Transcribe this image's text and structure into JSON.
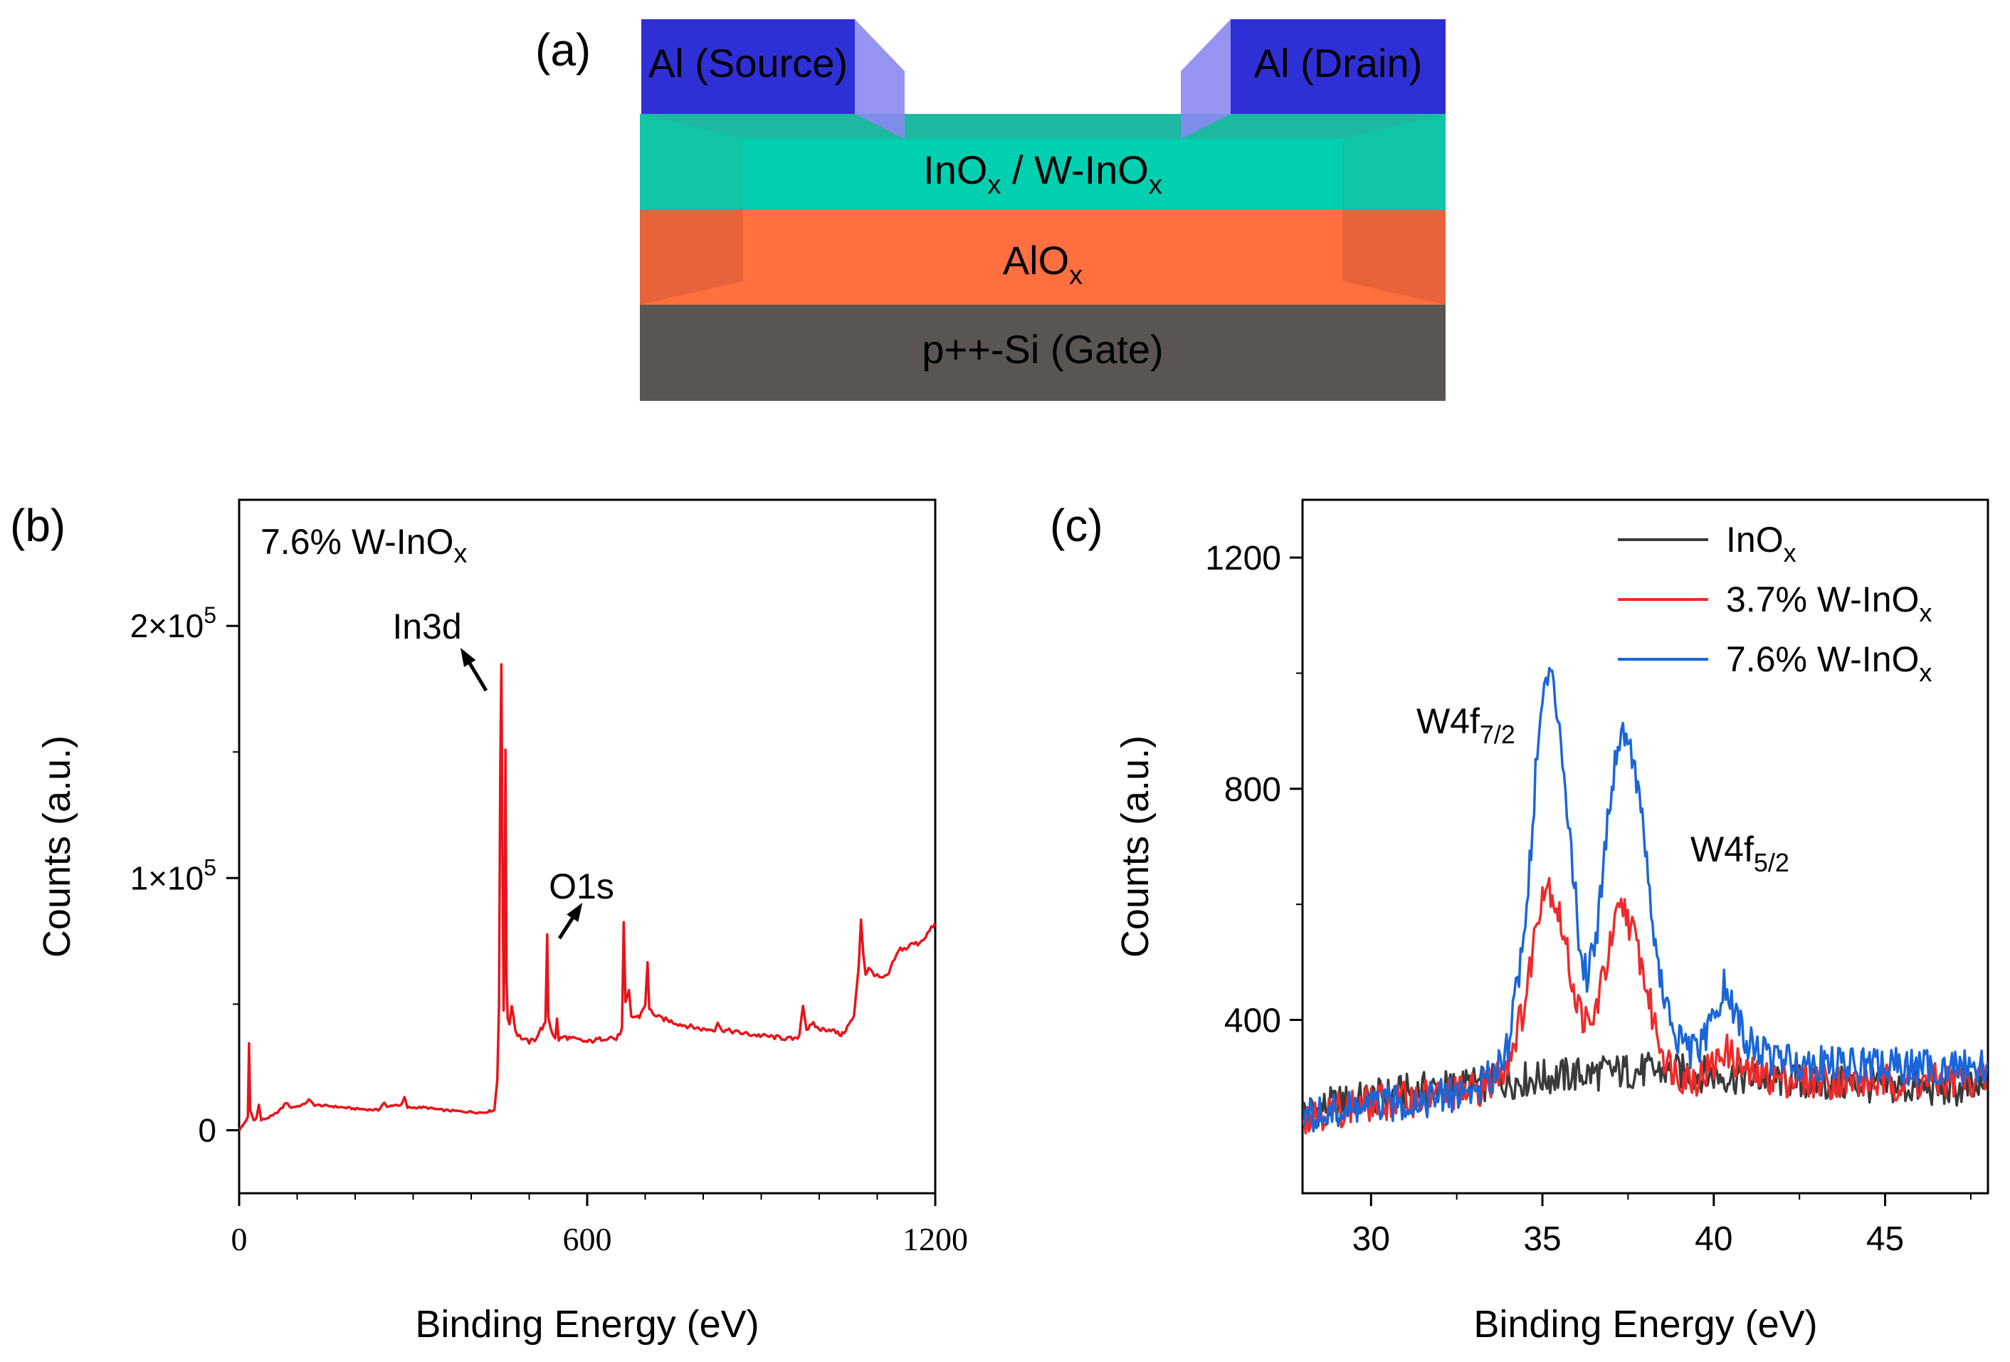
{
  "panel_a": {
    "label": "(a)",
    "source_label": "Al (Source)",
    "drain_label": "Al (Drain)",
    "channel_label": {
      "main": "InO",
      "sub": "x",
      "mid": " / W-InO",
      "sub2": "x"
    },
    "dielectric_label": {
      "main": "AlO",
      "sub": "x"
    },
    "gate_label": "p++-Si (Gate)",
    "colors": {
      "electrode": "#2f2fd6",
      "channel": "#00cfb0",
      "dielectric": "#ff6f40",
      "gate": "#5a5452"
    }
  },
  "chart_data": [
    {
      "panel_label": "(b)",
      "type": "line",
      "annotation": {
        "main": "7.6% W-InO",
        "sub": "x"
      },
      "xlabel": "Binding Energy (eV)",
      "ylabel": "Counts (a.u.)",
      "xlim": [
        0,
        1200
      ],
      "ylim": [
        -25000,
        250000
      ],
      "xticks": [
        0,
        600,
        1200
      ],
      "yticks": [
        {
          "value": 0,
          "base": "0",
          "exp": ""
        },
        {
          "value": 100000,
          "base": "1×10",
          "exp": "5"
        },
        {
          "value": 200000,
          "base": "2×10",
          "exp": "5"
        }
      ],
      "peak_labels": [
        {
          "text": "In3d",
          "x": 445,
          "y": 183000
        },
        {
          "text": "O1s",
          "x": 531,
          "y": 78000
        }
      ],
      "series": [
        {
          "name": "7.6% W-InO",
          "color": "#e8141a",
          "points": [
            [
              0,
              0
            ],
            [
              5,
              1500
            ],
            [
              12,
              4000
            ],
            [
              15,
              5000
            ],
            [
              17,
              34000
            ],
            [
              19,
              8000
            ],
            [
              25,
              4000
            ],
            [
              30,
              5000
            ],
            [
              34,
              10000
            ],
            [
              38,
              4000
            ],
            [
              45,
              4500
            ],
            [
              60,
              6000
            ],
            [
              75,
              9000
            ],
            [
              80,
              11000
            ],
            [
              90,
              9000
            ],
            [
              110,
              10000
            ],
            [
              120,
              12000
            ],
            [
              130,
              10000
            ],
            [
              160,
              9500
            ],
            [
              200,
              8500
            ],
            [
              240,
              8000
            ],
            [
              250,
              11000
            ],
            [
              255,
              9000
            ],
            [
              265,
              10000
            ],
            [
              280,
              10000
            ],
            [
              285,
              13000
            ],
            [
              290,
              9000
            ],
            [
              320,
              9000
            ],
            [
              350,
              8000
            ],
            [
              380,
              7500
            ],
            [
              420,
              7000
            ],
            [
              440,
              8000
            ],
            [
              445,
              20000
            ],
            [
              448,
              50000
            ],
            [
              450,
              140000
            ],
            [
              452,
              184000
            ],
            [
              454,
              110000
            ],
            [
              456,
              48000
            ],
            [
              458,
              80000
            ],
            [
              459,
              150000
            ],
            [
              461,
              60000
            ],
            [
              463,
              45000
            ],
            [
              466,
              42000
            ],
            [
              470,
              50000
            ],
            [
              473,
              45000
            ],
            [
              476,
              40000
            ],
            [
              480,
              38000
            ],
            [
              490,
              36000
            ],
            [
              500,
              35000
            ],
            [
              510,
              36000
            ],
            [
              520,
              40000
            ],
            [
              528,
              42000
            ],
            [
              531,
              78000
            ],
            [
              533,
              45000
            ],
            [
              538,
              40000
            ],
            [
              545,
              36000
            ],
            [
              548,
              44000
            ],
            [
              551,
              36000
            ],
            [
              560,
              37000
            ],
            [
              600,
              35000
            ],
            [
              640,
              37000
            ],
            [
              650,
              36000
            ],
            [
              660,
              40000
            ],
            [
              663,
              82000
            ],
            [
              666,
              50000
            ],
            [
              672,
              55000
            ],
            [
              676,
              45000
            ],
            [
              690,
              45000
            ],
            [
              700,
              50000
            ],
            [
              704,
              66000
            ],
            [
              707,
              48000
            ],
            [
              720,
              45000
            ],
            [
              760,
              42000
            ],
            [
              800,
              40000
            ],
            [
              820,
              40000
            ],
            [
              825,
              43000
            ],
            [
              830,
              40000
            ],
            [
              880,
              38000
            ],
            [
              920,
              37000
            ],
            [
              960,
              36000
            ],
            [
              966,
              38000
            ],
            [
              972,
              50000
            ],
            [
              978,
              40000
            ],
            [
              990,
              42000
            ],
            [
              1000,
              40000
            ],
            [
              1020,
              40000
            ],
            [
              1035,
              38000
            ],
            [
              1040,
              38000
            ],
            [
              1060,
              45000
            ],
            [
              1068,
              65000
            ],
            [
              1072,
              84000
            ],
            [
              1076,
              70000
            ],
            [
              1080,
              62000
            ],
            [
              1085,
              64000
            ],
            [
              1095,
              62000
            ],
            [
              1100,
              61000
            ],
            [
              1110,
              60000
            ],
            [
              1120,
              62000
            ],
            [
              1130,
              68000
            ],
            [
              1140,
              72000
            ],
            [
              1150,
              72000
            ],
            [
              1160,
              74000
            ],
            [
              1170,
              74000
            ],
            [
              1180,
              76000
            ],
            [
              1190,
              79000
            ],
            [
              1200,
              82000
            ]
          ]
        }
      ]
    },
    {
      "panel_label": "(c)",
      "type": "line",
      "xlabel": "Binding Energy (eV)",
      "ylabel": "Counts (a.u.)",
      "xlim": [
        28,
        48
      ],
      "ylim": [
        100,
        1300
      ],
      "xticks": [
        30,
        35,
        40,
        45
      ],
      "yticks": [
        400,
        800,
        1200
      ],
      "peak_labels": [
        {
          "main": "W4f",
          "sub": "7/2",
          "x": 34.0,
          "y": 950
        },
        {
          "main": "W4f",
          "sub": "5/2",
          "x": 40.7,
          "y": 705
        }
      ],
      "legend": [
        {
          "main": "InO",
          "sub": "x",
          "color": "#3a3a3a"
        },
        {
          "main": "3.7% W-InO",
          "sub": "x",
          "color": "#f02a2a"
        },
        {
          "main": "7.6% W-InO",
          "sub": "x",
          "color": "#1a66d9"
        }
      ],
      "series": [
        {
          "name": "InOx",
          "color": "#3a3a3a",
          "points": [
            [
              28,
              240
            ],
            [
              29,
              255
            ],
            [
              30,
              265
            ],
            [
              31,
              275
            ],
            [
              32,
              282
            ],
            [
              33,
              288
            ],
            [
              34,
              294
            ],
            [
              35,
              300
            ],
            [
              36,
              305
            ],
            [
              37,
              310
            ],
            [
              38,
              312
            ],
            [
              39,
              310
            ],
            [
              40,
              305
            ],
            [
              41,
              300
            ],
            [
              42,
              296
            ],
            [
              43,
              290
            ],
            [
              44,
              288
            ],
            [
              45,
              285
            ],
            [
              46,
              282
            ],
            [
              47,
              280
            ],
            [
              48,
              278
            ]
          ]
        },
        {
          "name": "3.7% W-InOx",
          "color": "#f02a2a",
          "points": [
            [
              28,
              235
            ],
            [
              29,
              245
            ],
            [
              30,
              255
            ],
            [
              31,
              262
            ],
            [
              32,
              270
            ],
            [
              33,
              278
            ],
            [
              33.5,
              290
            ],
            [
              34,
              330
            ],
            [
              34.5,
              430
            ],
            [
              34.8,
              560
            ],
            [
              35.0,
              630
            ],
            [
              35.2,
              635
            ],
            [
              35.5,
              580
            ],
            [
              36,
              430
            ],
            [
              36.4,
              380
            ],
            [
              36.8,
              480
            ],
            [
              37.2,
              580
            ],
            [
              37.4,
              595
            ],
            [
              37.8,
              520
            ],
            [
              38.2,
              410
            ],
            [
              38.6,
              330
            ],
            [
              39,
              305
            ],
            [
              39.5,
              300
            ],
            [
              40,
              320
            ],
            [
              40.3,
              350
            ],
            [
              40.7,
              325
            ],
            [
              41,
              305
            ],
            [
              42,
              298
            ],
            [
              43,
              296
            ],
            [
              44,
              294
            ],
            [
              45,
              292
            ],
            [
              46,
              292
            ],
            [
              47,
              295
            ],
            [
              48,
              298
            ]
          ]
        },
        {
          "name": "7.6% W-InOx",
          "color": "#1a66d9",
          "points": [
            [
              28,
              230
            ],
            [
              29,
              240
            ],
            [
              30,
              250
            ],
            [
              31,
              258
            ],
            [
              32,
              266
            ],
            [
              33,
              278
            ],
            [
              33.5,
              300
            ],
            [
              34,
              360
            ],
            [
              34.5,
              560
            ],
            [
              34.8,
              820
            ],
            [
              35.0,
              960
            ],
            [
              35.2,
              1000
            ],
            [
              35.5,
              920
            ],
            [
              35.8,
              720
            ],
            [
              36.1,
              520
            ],
            [
              36.3,
              480
            ],
            [
              36.6,
              560
            ],
            [
              36.9,
              750
            ],
            [
              37.2,
              880
            ],
            [
              37.4,
              905
            ],
            [
              37.7,
              840
            ],
            [
              38.0,
              700
            ],
            [
              38.3,
              520
            ],
            [
              38.6,
              420
            ],
            [
              39,
              360
            ],
            [
              39.5,
              340
            ],
            [
              40,
              400
            ],
            [
              40.3,
              455
            ],
            [
              40.7,
              400
            ],
            [
              41,
              360
            ],
            [
              41.5,
              340
            ],
            [
              42,
              330
            ],
            [
              43,
              325
            ],
            [
              44,
              322
            ],
            [
              45,
              320
            ],
            [
              46,
              318
            ],
            [
              47,
              318
            ],
            [
              48,
              320
            ]
          ]
        }
      ]
    }
  ]
}
